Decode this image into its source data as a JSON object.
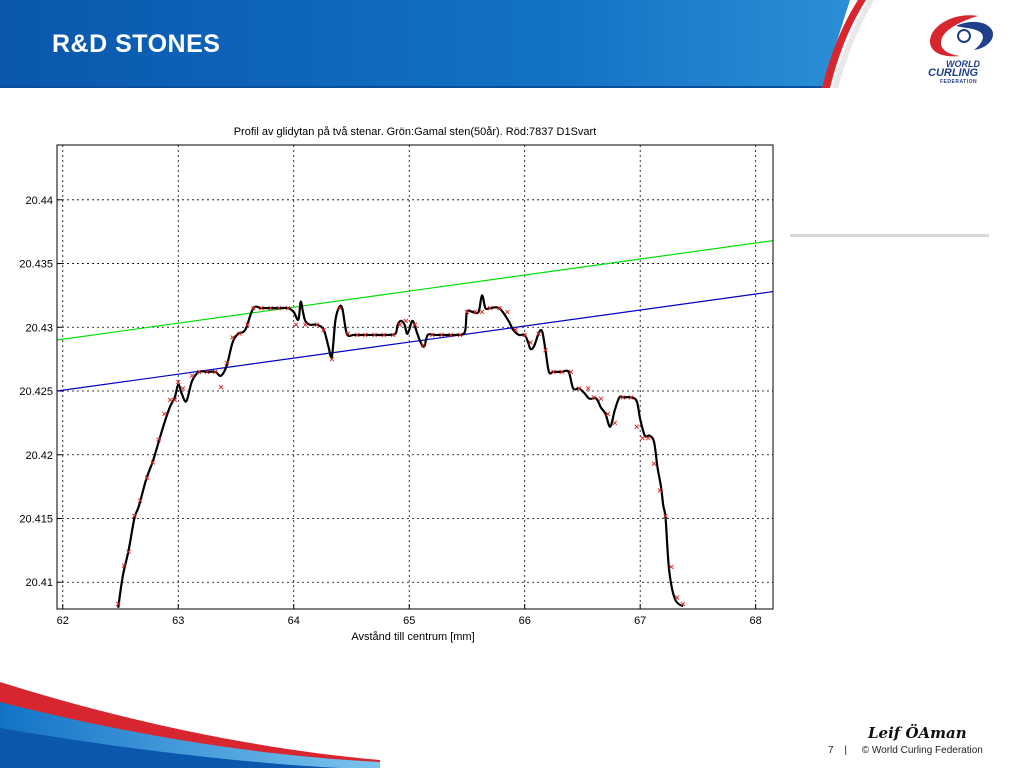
{
  "slide": {
    "title": "R&D   STONES",
    "page_number": "7",
    "separator": "|",
    "copyright": "© World Curling Federation",
    "signature": "Leif ÖAman",
    "logo": {
      "line1": "WORLD",
      "line2": "CURLING",
      "line3": "FEDERATION",
      "icon": "curling-stone-swirl-icon"
    },
    "colors": {
      "header_blue": "#0a5fb4",
      "header_light": "#3aa0e0",
      "accent_red": "#d7262e"
    }
  },
  "chart_data": {
    "type": "line",
    "title": "Profil av glidytan på två stenar. Grön:Gamal sten(50år). Röd:7837 D1Svart",
    "xlabel": "Avstånd till centrum [mm]",
    "ylabel": "",
    "xlim": [
      61.95,
      68.15
    ],
    "ylim": [
      20.4079,
      20.4443
    ],
    "xticks": [
      "62",
      "63",
      "64",
      "65",
      "66",
      "67",
      "68"
    ],
    "yticks": [
      "20.41",
      "20.415",
      "20.42",
      "20.425",
      "20.43",
      "20.435",
      "20.44"
    ],
    "grid": true,
    "series": [
      {
        "color": "#00e000",
        "x": [
          61.95,
          68.15
        ],
        "y": [
          20.429,
          20.4368
        ]
      },
      {
        "color": "#0000c8",
        "x": [
          61.95,
          68.15
        ],
        "y": [
          20.425,
          20.4328
        ]
      },
      {
        "color": "#000000",
        "x": [
          62.48,
          62.52,
          62.57,
          62.62,
          62.66,
          62.72,
          62.78,
          62.83,
          62.88,
          62.93,
          62.97,
          63.0,
          63.03,
          63.07,
          63.12,
          63.18,
          63.25,
          63.32,
          63.37,
          63.42,
          63.47,
          63.52,
          63.58,
          63.65,
          63.72,
          63.8,
          63.88,
          63.95,
          64.0,
          64.04,
          64.06,
          64.08,
          64.1,
          64.14,
          64.2,
          64.26,
          64.3,
          64.33,
          64.36,
          64.39,
          64.42,
          64.46,
          64.52,
          64.6,
          64.7,
          64.8,
          64.88,
          64.9,
          64.93,
          64.96,
          64.98,
          65.0,
          65.03,
          65.07,
          65.1,
          65.13,
          65.16,
          65.22,
          65.3,
          65.4,
          65.48,
          65.5,
          65.55,
          65.6,
          65.63,
          65.66,
          65.7,
          65.78,
          65.86,
          65.9,
          65.95,
          66.0,
          66.03,
          66.05,
          66.08,
          66.12,
          66.15,
          66.18,
          66.21,
          66.25,
          66.32,
          66.38,
          66.42,
          66.47,
          66.52,
          66.56,
          66.62,
          66.66,
          66.7,
          66.74,
          66.78,
          66.82,
          66.86,
          66.92,
          66.97,
          67.0,
          67.04,
          67.08,
          67.12,
          67.15,
          67.18,
          67.2,
          67.22,
          67.25,
          67.3,
          67.37
        ],
        "y": [
          20.408,
          20.4105,
          20.4125,
          20.415,
          20.416,
          20.418,
          20.4195,
          20.421,
          20.4225,
          20.4238,
          20.4245,
          20.4255,
          20.4248,
          20.4242,
          20.4258,
          20.4265,
          20.4265,
          20.4265,
          20.4262,
          20.427,
          20.4288,
          20.4295,
          20.4298,
          20.4315,
          20.4315,
          20.4315,
          20.4315,
          20.4315,
          20.4312,
          20.4306,
          20.432,
          20.4312,
          20.4305,
          20.4302,
          20.4302,
          20.4298,
          20.4285,
          20.4277,
          20.4305,
          20.4315,
          20.4315,
          20.4295,
          20.4294,
          20.4294,
          20.4294,
          20.4294,
          20.4295,
          20.4302,
          20.4305,
          20.4302,
          20.4295,
          20.4298,
          20.4305,
          20.4295,
          20.4288,
          20.4285,
          20.4294,
          20.4294,
          20.4294,
          20.4294,
          20.4296,
          20.4312,
          20.4312,
          20.4312,
          20.4325,
          20.4315,
          20.4315,
          20.4315,
          20.4305,
          20.4298,
          20.4294,
          20.4294,
          20.4288,
          20.4283,
          20.4285,
          20.4295,
          20.4297,
          20.4282,
          20.4265,
          20.4265,
          20.4265,
          20.4265,
          20.4252,
          20.4252,
          20.4248,
          20.4244,
          20.4244,
          20.4237,
          20.4232,
          20.4222,
          20.4235,
          20.4245,
          20.4245,
          20.4245,
          20.4242,
          20.4228,
          20.4215,
          20.4215,
          20.421,
          20.419,
          20.4175,
          20.416,
          20.415,
          20.411,
          20.4087,
          20.4081
        ]
      }
    ],
    "markers": {
      "color": "#e02020",
      "symbol": "x",
      "x": [
        62.48,
        62.53,
        62.57,
        62.62,
        62.67,
        62.73,
        62.78,
        62.83,
        62.88,
        62.93,
        62.97,
        63.0,
        63.04,
        63.12,
        63.18,
        63.25,
        63.32,
        63.37,
        63.42,
        63.47,
        63.53,
        63.6,
        63.65,
        63.72,
        63.8,
        63.87,
        63.95,
        64.02,
        64.1,
        64.2,
        64.26,
        64.33,
        64.4,
        64.47,
        64.55,
        64.62,
        64.7,
        64.78,
        64.86,
        64.92,
        64.97,
        65.05,
        65.12,
        65.2,
        65.28,
        65.36,
        65.44,
        65.5,
        65.57,
        65.63,
        65.7,
        65.78,
        65.85,
        65.92,
        66.0,
        66.05,
        66.12,
        66.18,
        66.25,
        66.32,
        66.4,
        66.47,
        66.55,
        66.6,
        66.66,
        66.72,
        66.78,
        66.85,
        66.92,
        66.97,
        67.02,
        67.07,
        67.12,
        67.17,
        67.22,
        67.27,
        67.32,
        67.37
      ],
      "y": [
        20.4083,
        20.4113,
        20.4124,
        20.4152,
        20.4164,
        20.4182,
        20.4194,
        20.4212,
        20.4232,
        20.4243,
        20.4243,
        20.4257,
        20.4252,
        20.4262,
        20.4265,
        20.4265,
        20.4265,
        20.4253,
        20.4272,
        20.4292,
        20.4295,
        20.4302,
        20.4315,
        20.4315,
        20.4315,
        20.4315,
        20.4315,
        20.4302,
        20.4302,
        20.4302,
        20.4298,
        20.4275,
        20.4315,
        20.4295,
        20.4294,
        20.4294,
        20.4294,
        20.4294,
        20.4294,
        20.4302,
        20.4305,
        20.4302,
        20.4286,
        20.4294,
        20.4294,
        20.4294,
        20.4294,
        20.4312,
        20.4312,
        20.4312,
        20.4315,
        20.4315,
        20.4312,
        20.4298,
        20.4294,
        20.4288,
        20.4295,
        20.4282,
        20.4265,
        20.4265,
        20.4265,
        20.4252,
        20.4252,
        20.4245,
        20.4244,
        20.4232,
        20.4225,
        20.4245,
        20.4245,
        20.4222,
        20.4213,
        20.4213,
        20.4193,
        20.4172,
        20.4152,
        20.4112,
        20.4088,
        20.4083
      ]
    }
  }
}
